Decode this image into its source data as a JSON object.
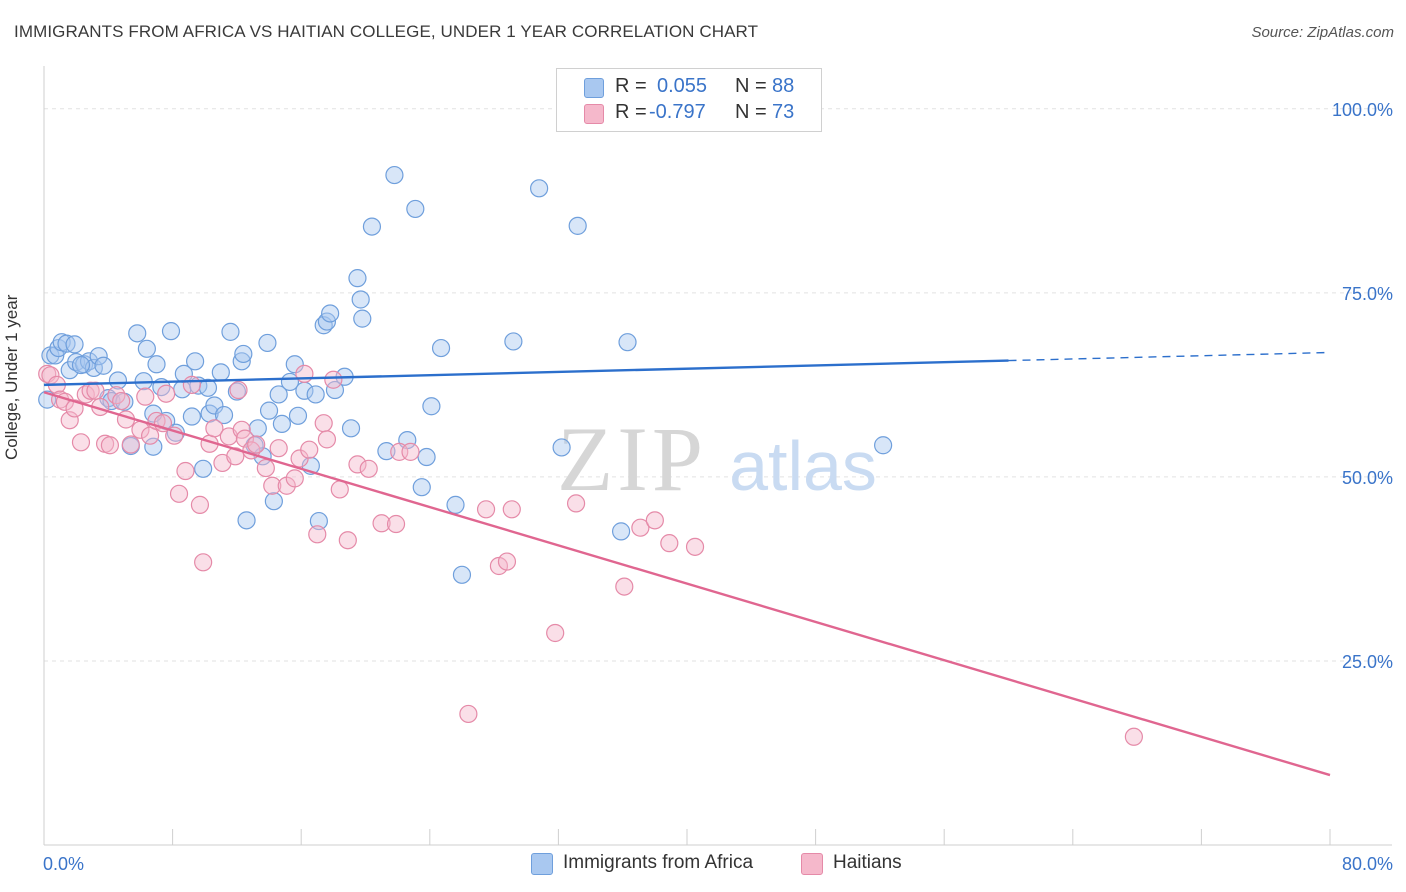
{
  "header": {
    "title": "IMMIGRANTS FROM AFRICA VS HAITIAN COLLEGE, UNDER 1 YEAR CORRELATION CHART",
    "source": "Source: ZipAtlas.com"
  },
  "watermark": {
    "zip": "ZIP",
    "atlas": "atlas"
  },
  "legend": {
    "rows": [
      {
        "r_label": "R =",
        "r_value": "0.055",
        "n_label": "N =",
        "n_value": "88",
        "color": "#a9c8f0"
      },
      {
        "r_label": "R =",
        "r_value": "-0.797",
        "n_label": "N =",
        "n_value": "73",
        "color": "#f5b8cb"
      }
    ]
  },
  "bottom_legend": {
    "africa": "Immigrants from Africa",
    "haitians": "Haitians"
  },
  "colors": {
    "africa_fill": "#a9c8f0",
    "africa_stroke": "#6f9fdc",
    "africa_line": "#2c6fcc",
    "haiti_fill": "#f5b8cb",
    "haiti_stroke": "#e58aa8",
    "haiti_line": "#e06690",
    "tick_label": "#3a74c9",
    "grid": "#e2e2e2"
  },
  "chart_data": {
    "type": "scatter",
    "title": "IMMIGRANTS FROM AFRICA VS HAITIAN COLLEGE, UNDER 1 YEAR CORRELATION CHART",
    "xlabel": "",
    "ylabel": "College, Under 1 year",
    "xlim": [
      0,
      80
    ],
    "ylim": [
      0,
      105
    ],
    "x_tick_labels": [
      "0.0%",
      "80.0%"
    ],
    "y_ticks": [
      25,
      50,
      75,
      100
    ],
    "y_tick_labels": [
      "25.0%",
      "50.0%",
      "75.0%",
      "100.0%"
    ],
    "grid": true,
    "legend_position": "top-center",
    "series": [
      {
        "name": "Immigrants from Africa",
        "trend": {
          "x0": 0,
          "y0": 62.5,
          "x1": 60,
          "y1": 65.8,
          "dashed_to_x": 80,
          "dashed_to_y": 66.9
        },
        "points": [
          [
            0.2,
            60.5
          ],
          [
            0.4,
            66.5
          ],
          [
            0.7,
            66.5
          ],
          [
            0.9,
            67.5
          ],
          [
            1.1,
            68.3
          ],
          [
            1.4,
            68.1
          ],
          [
            1.6,
            64.5
          ],
          [
            1.9,
            68
          ],
          [
            2.0,
            65.6
          ],
          [
            2.5,
            65.3
          ],
          [
            2.8,
            65.7
          ],
          [
            3.1,
            64.8
          ],
          [
            3.4,
            66.4
          ],
          [
            3.7,
            65.1
          ],
          [
            4.0,
            60.7
          ],
          [
            4.2,
            60.3
          ],
          [
            4.6,
            63.1
          ],
          [
            5.0,
            60.2
          ],
          [
            5.4,
            54.2
          ],
          [
            5.8,
            69.5
          ],
          [
            6.2,
            63.0
          ],
          [
            6.4,
            67.4
          ],
          [
            6.8,
            54.1
          ],
          [
            7.0,
            65.3
          ],
          [
            7.3,
            62.2
          ],
          [
            7.6,
            57.6
          ],
          [
            7.9,
            69.8
          ],
          [
            8.2,
            56
          ],
          [
            8.6,
            61.9
          ],
          [
            8.7,
            64
          ],
          [
            9.2,
            58.2
          ],
          [
            9.4,
            65.7
          ],
          [
            9.6,
            62.4
          ],
          [
            9.9,
            51.1
          ],
          [
            10.3,
            58.6
          ],
          [
            10.6,
            59.7
          ],
          [
            11.0,
            64.2
          ],
          [
            11.2,
            58.4
          ],
          [
            11.6,
            69.7
          ],
          [
            12.0,
            61.6
          ],
          [
            12.3,
            65.7
          ],
          [
            12.4,
            66.7
          ],
          [
            12.6,
            44.1
          ],
          [
            13.1,
            54.3
          ],
          [
            13.3,
            56.6
          ],
          [
            13.6,
            52.8
          ],
          [
            14.0,
            59
          ],
          [
            14.3,
            46.7
          ],
          [
            14.6,
            61.2
          ],
          [
            14.8,
            57.2
          ],
          [
            15.3,
            62.9
          ],
          [
            15.6,
            65.3
          ],
          [
            15.8,
            58.3
          ],
          [
            16.2,
            61.7
          ],
          [
            16.6,
            51.5
          ],
          [
            16.9,
            61.2
          ],
          [
            17.1,
            44
          ],
          [
            17.4,
            70.6
          ],
          [
            17.6,
            71.1
          ],
          [
            17.8,
            72.2
          ],
          [
            18.1,
            61.8
          ],
          [
            18.7,
            63.6
          ],
          [
            19.1,
            56.6
          ],
          [
            19.7,
            74.1
          ],
          [
            19.5,
            77
          ],
          [
            19.8,
            71.5
          ],
          [
            20.4,
            84
          ],
          [
            21.3,
            53.5
          ],
          [
            21.8,
            91
          ],
          [
            22.6,
            55
          ],
          [
            23.1,
            86.4
          ],
          [
            23.5,
            48.6
          ],
          [
            23.8,
            52.7
          ],
          [
            24.1,
            59.6
          ],
          [
            24.7,
            67.5
          ],
          [
            25.6,
            46.2
          ],
          [
            26.0,
            36.7
          ],
          [
            29.2,
            68.4
          ],
          [
            30.8,
            89.2
          ],
          [
            32.2,
            54
          ],
          [
            33.2,
            84.1
          ],
          [
            35.9,
            42.6
          ],
          [
            36.3,
            68.3
          ],
          [
            52.2,
            54.3
          ],
          [
            2.3,
            65.2
          ],
          [
            6.8,
            58.6
          ],
          [
            13.9,
            68.2
          ],
          [
            10.2,
            62.1
          ]
        ]
      },
      {
        "name": "Haitians",
        "trend": {
          "x0": 0,
          "y0": 61.5,
          "x1": 80,
          "y1": 9.5
        },
        "points": [
          [
            0.2,
            64
          ],
          [
            0.4,
            63.8
          ],
          [
            0.8,
            62.5
          ],
          [
            1.0,
            60.5
          ],
          [
            1.3,
            60.2
          ],
          [
            1.6,
            57.7
          ],
          [
            1.9,
            59.3
          ],
          [
            2.3,
            54.7
          ],
          [
            2.6,
            61.2
          ],
          [
            2.9,
            61.7
          ],
          [
            3.2,
            61.7
          ],
          [
            3.5,
            59.5
          ],
          [
            3.8,
            54.5
          ],
          [
            4.1,
            54.3
          ],
          [
            4.5,
            61.1
          ],
          [
            4.8,
            60.3
          ],
          [
            5.1,
            57.8
          ],
          [
            5.4,
            54.4
          ],
          [
            6.0,
            56.4
          ],
          [
            6.3,
            60.9
          ],
          [
            6.6,
            55.6
          ],
          [
            7.0,
            57.6
          ],
          [
            7.4,
            57.3
          ],
          [
            7.6,
            61.3
          ],
          [
            8.1,
            55.6
          ],
          [
            8.4,
            47.7
          ],
          [
            8.8,
            50.8
          ],
          [
            9.2,
            62.5
          ],
          [
            9.7,
            46.2
          ],
          [
            9.9,
            38.4
          ],
          [
            10.3,
            54.5
          ],
          [
            10.6,
            56.6
          ],
          [
            11.1,
            51.9
          ],
          [
            11.5,
            55.5
          ],
          [
            11.9,
            52.8
          ],
          [
            12.1,
            61.8
          ],
          [
            12.3,
            56.4
          ],
          [
            12.5,
            55.2
          ],
          [
            12.9,
            53.6
          ],
          [
            13.2,
            54.4
          ],
          [
            13.8,
            51.2
          ],
          [
            14.2,
            48.8
          ],
          [
            14.6,
            53.9
          ],
          [
            15.1,
            48.8
          ],
          [
            15.6,
            49.8
          ],
          [
            15.9,
            52.5
          ],
          [
            16.2,
            64
          ],
          [
            16.5,
            53.7
          ],
          [
            17.0,
            42.2
          ],
          [
            17.4,
            57.3
          ],
          [
            17.6,
            55.1
          ],
          [
            18.0,
            63.2
          ],
          [
            18.4,
            48.3
          ],
          [
            18.9,
            41.4
          ],
          [
            19.5,
            51.7
          ],
          [
            20.2,
            51.1
          ],
          [
            21.0,
            43.7
          ],
          [
            21.9,
            43.6
          ],
          [
            22.1,
            53.4
          ],
          [
            22.8,
            53.4
          ],
          [
            26.4,
            17.8
          ],
          [
            27.5,
            45.6
          ],
          [
            28.3,
            37.9
          ],
          [
            28.8,
            38.5
          ],
          [
            29.1,
            45.6
          ],
          [
            31.8,
            28.8
          ],
          [
            33.1,
            46.4
          ],
          [
            36.1,
            35.1
          ],
          [
            37.1,
            43.1
          ],
          [
            38.0,
            44.1
          ],
          [
            38.9,
            41
          ],
          [
            40.5,
            40.5
          ],
          [
            67.8,
            14.7
          ]
        ]
      }
    ]
  }
}
